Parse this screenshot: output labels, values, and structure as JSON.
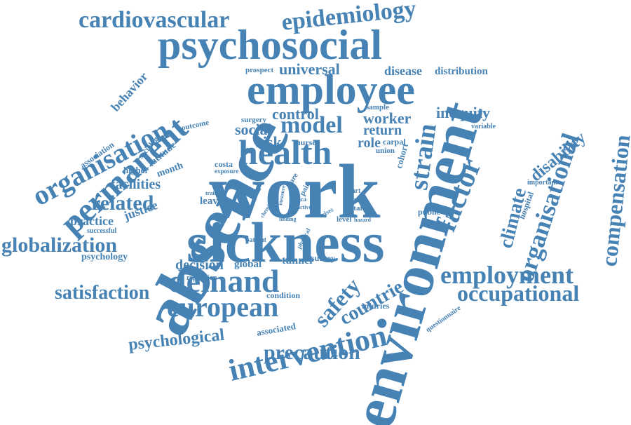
{
  "colors": {
    "text": "#4682B4",
    "background": "#ffffff"
  },
  "words": [
    "work",
    "absence",
    "sickness",
    "environment",
    "employee",
    "psychosocial",
    "health",
    "permanent",
    "demand",
    "organisation",
    "intervention",
    "cardiovascular",
    "epidemiology",
    "employment",
    "occupational",
    "european",
    "strain",
    "factor",
    "compensation",
    "organisational",
    "model",
    "globalization",
    "satisfaction",
    "safety",
    "countrie",
    "related",
    "precaution",
    "psychological",
    "decision",
    "climate",
    "disability",
    "universal",
    "control",
    "risk",
    "social",
    "worker",
    "return",
    "role",
    "inequity",
    "disease",
    "distribution",
    "behavior",
    "facilities",
    "practice",
    "justice",
    "leave",
    "tunnel",
    "survey",
    "latitude",
    "month",
    "higher",
    "costa",
    "association",
    "sociology",
    "outcome",
    "surgery",
    "nurse",
    "sample",
    "carpal",
    "cohort",
    "union",
    "variable",
    "hospital",
    "important",
    "public",
    "staff",
    "term",
    "part",
    "level",
    "hazard",
    "finding",
    "patient",
    "physical",
    "crises",
    "active",
    "rica",
    "pain",
    "measure",
    "care",
    "exposure",
    "training",
    "chemical",
    "successful",
    "psychology",
    "regression",
    "condition",
    "associated",
    "injuries",
    "questionnaire",
    "prospect",
    "global"
  ]
}
